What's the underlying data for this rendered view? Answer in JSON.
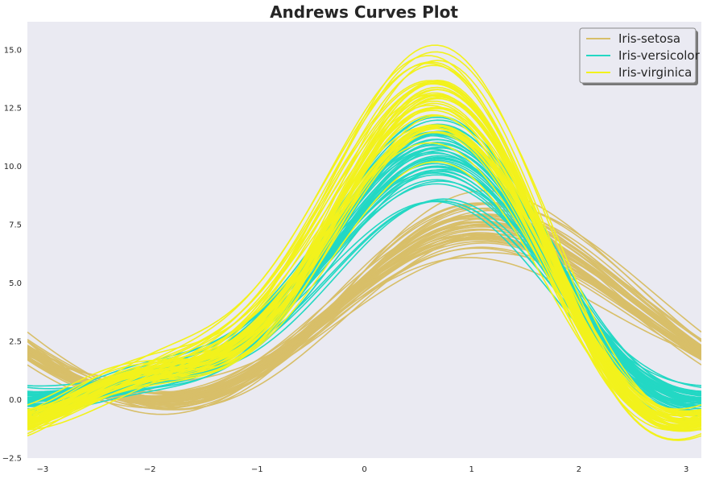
{
  "chart_data": {
    "type": "line",
    "title": "Andrews Curves Plot",
    "xlabel": "",
    "ylabel": "",
    "xlim": [
      -3.14159,
      3.14159
    ],
    "ylim": [
      -2.5,
      16.2
    ],
    "x_ticks": [
      -3,
      -2,
      -1,
      0,
      1,
      2,
      3
    ],
    "x_tick_labels": [
      "−3",
      "−2",
      "−1",
      "0",
      "1",
      "2",
      "3"
    ],
    "y_ticks": [
      -2.5,
      0.0,
      2.5,
      5.0,
      7.5,
      10.0,
      12.5,
      15.0
    ],
    "y_tick_labels": [
      "−2.5",
      "0.0",
      "2.5",
      "5.0",
      "7.5",
      "10.0",
      "12.5",
      "15.0"
    ],
    "grid": false,
    "background": "#eaeaf2",
    "legend": {
      "placement": "top-right"
    },
    "series": [
      {
        "name": "Iris-setosa",
        "color": "#d8bf69",
        "curves": [
          [
            5.1,
            3.5,
            1.4,
            0.2
          ],
          [
            4.9,
            3.0,
            1.4,
            0.2
          ],
          [
            4.7,
            3.2,
            1.3,
            0.2
          ],
          [
            4.6,
            3.1,
            1.5,
            0.2
          ],
          [
            5.0,
            3.6,
            1.4,
            0.2
          ],
          [
            5.4,
            3.9,
            1.7,
            0.4
          ],
          [
            4.6,
            3.4,
            1.4,
            0.3
          ],
          [
            5.0,
            3.4,
            1.5,
            0.2
          ],
          [
            4.4,
            2.9,
            1.4,
            0.2
          ],
          [
            4.9,
            3.1,
            1.5,
            0.1
          ],
          [
            5.4,
            3.7,
            1.5,
            0.2
          ],
          [
            4.8,
            3.4,
            1.6,
            0.2
          ],
          [
            4.8,
            3.0,
            1.4,
            0.1
          ],
          [
            4.3,
            3.0,
            1.1,
            0.1
          ],
          [
            5.8,
            4.0,
            1.2,
            0.2
          ],
          [
            5.7,
            4.4,
            1.5,
            0.4
          ],
          [
            5.4,
            3.9,
            1.3,
            0.4
          ],
          [
            5.1,
            3.5,
            1.4,
            0.3
          ],
          [
            5.7,
            3.8,
            1.7,
            0.3
          ],
          [
            5.1,
            3.8,
            1.5,
            0.3
          ],
          [
            5.4,
            3.4,
            1.7,
            0.2
          ],
          [
            5.1,
            3.7,
            1.5,
            0.4
          ],
          [
            4.6,
            3.6,
            1.0,
            0.2
          ],
          [
            5.1,
            3.3,
            1.7,
            0.5
          ],
          [
            4.8,
            3.4,
            1.9,
            0.2
          ],
          [
            5.0,
            3.0,
            1.6,
            0.2
          ],
          [
            5.0,
            3.4,
            1.6,
            0.4
          ],
          [
            5.2,
            3.5,
            1.5,
            0.2
          ],
          [
            5.2,
            3.4,
            1.4,
            0.2
          ],
          [
            4.7,
            3.2,
            1.6,
            0.2
          ],
          [
            4.8,
            3.1,
            1.6,
            0.2
          ],
          [
            5.4,
            3.4,
            1.5,
            0.4
          ],
          [
            5.2,
            4.1,
            1.5,
            0.1
          ],
          [
            5.5,
            4.2,
            1.4,
            0.2
          ],
          [
            4.9,
            3.1,
            1.5,
            0.1
          ],
          [
            5.0,
            3.2,
            1.2,
            0.2
          ],
          [
            5.5,
            3.5,
            1.3,
            0.2
          ],
          [
            4.9,
            3.1,
            1.5,
            0.1
          ],
          [
            4.4,
            3.0,
            1.3,
            0.2
          ],
          [
            5.1,
            3.4,
            1.5,
            0.2
          ],
          [
            5.0,
            3.5,
            1.3,
            0.3
          ],
          [
            4.5,
            2.3,
            1.3,
            0.3
          ],
          [
            4.4,
            3.2,
            1.3,
            0.2
          ],
          [
            5.0,
            3.5,
            1.6,
            0.6
          ],
          [
            5.1,
            3.8,
            1.9,
            0.4
          ],
          [
            4.8,
            3.0,
            1.4,
            0.3
          ],
          [
            5.1,
            3.8,
            1.6,
            0.2
          ],
          [
            4.6,
            3.2,
            1.4,
            0.2
          ],
          [
            5.3,
            3.7,
            1.5,
            0.2
          ],
          [
            5.0,
            3.3,
            1.4,
            0.2
          ]
        ]
      },
      {
        "name": "Iris-versicolor",
        "color": "#23d8c4",
        "curves": [
          [
            7.0,
            3.2,
            4.7,
            1.4
          ],
          [
            6.4,
            3.2,
            4.5,
            1.5
          ],
          [
            6.9,
            3.1,
            4.9,
            1.5
          ],
          [
            5.5,
            2.3,
            4.0,
            1.3
          ],
          [
            6.5,
            2.8,
            4.6,
            1.5
          ],
          [
            5.7,
            2.8,
            4.5,
            1.3
          ],
          [
            6.3,
            3.3,
            4.7,
            1.6
          ],
          [
            4.9,
            2.4,
            3.3,
            1.0
          ],
          [
            6.6,
            2.9,
            4.6,
            1.3
          ],
          [
            5.2,
            2.7,
            3.9,
            1.4
          ],
          [
            5.0,
            2.0,
            3.5,
            1.0
          ],
          [
            5.9,
            3.0,
            4.2,
            1.5
          ],
          [
            6.0,
            2.2,
            4.0,
            1.0
          ],
          [
            6.1,
            2.9,
            4.7,
            1.4
          ],
          [
            5.6,
            2.9,
            3.6,
            1.3
          ],
          [
            6.7,
            3.1,
            4.4,
            1.4
          ],
          [
            5.6,
            3.0,
            4.5,
            1.5
          ],
          [
            5.8,
            2.7,
            4.1,
            1.0
          ],
          [
            6.2,
            2.2,
            4.5,
            1.5
          ],
          [
            5.6,
            2.5,
            3.9,
            1.1
          ],
          [
            5.9,
            3.2,
            4.8,
            1.8
          ],
          [
            6.1,
            2.8,
            4.0,
            1.3
          ],
          [
            6.3,
            2.5,
            4.9,
            1.5
          ],
          [
            6.1,
            2.8,
            4.7,
            1.2
          ],
          [
            6.4,
            2.9,
            4.3,
            1.3
          ],
          [
            6.6,
            3.0,
            4.4,
            1.4
          ],
          [
            6.8,
            2.8,
            4.8,
            1.4
          ],
          [
            6.7,
            3.0,
            5.0,
            1.7
          ],
          [
            6.0,
            2.9,
            4.5,
            1.5
          ],
          [
            5.7,
            2.6,
            3.5,
            1.0
          ],
          [
            5.5,
            2.4,
            3.8,
            1.1
          ],
          [
            5.5,
            2.4,
            3.7,
            1.0
          ],
          [
            5.8,
            2.7,
            3.9,
            1.2
          ],
          [
            6.0,
            2.7,
            5.1,
            1.6
          ],
          [
            5.4,
            3.0,
            4.5,
            1.5
          ],
          [
            6.0,
            3.4,
            4.5,
            1.6
          ],
          [
            6.7,
            3.1,
            4.7,
            1.5
          ],
          [
            6.3,
            2.3,
            4.4,
            1.3
          ],
          [
            5.6,
            3.0,
            4.1,
            1.3
          ],
          [
            5.5,
            2.5,
            4.0,
            1.3
          ],
          [
            5.5,
            2.6,
            4.4,
            1.2
          ],
          [
            6.1,
            3.0,
            4.6,
            1.4
          ],
          [
            5.8,
            2.6,
            4.0,
            1.2
          ],
          [
            5.0,
            2.3,
            3.3,
            1.0
          ],
          [
            5.6,
            2.7,
            4.2,
            1.3
          ],
          [
            5.7,
            3.0,
            4.2,
            1.2
          ],
          [
            5.7,
            2.9,
            4.2,
            1.3
          ],
          [
            6.2,
            2.9,
            4.3,
            1.3
          ],
          [
            5.1,
            2.5,
            3.0,
            1.1
          ],
          [
            5.7,
            2.8,
            4.1,
            1.3
          ]
        ]
      },
      {
        "name": "Iris-virginica",
        "color": "#f2f21c",
        "curves": [
          [
            6.3,
            3.3,
            6.0,
            2.5
          ],
          [
            5.8,
            2.7,
            5.1,
            1.9
          ],
          [
            7.1,
            3.0,
            5.9,
            2.1
          ],
          [
            6.3,
            2.9,
            5.6,
            1.8
          ],
          [
            6.5,
            3.0,
            5.8,
            2.2
          ],
          [
            7.6,
            3.0,
            6.6,
            2.1
          ],
          [
            4.9,
            2.5,
            4.5,
            1.7
          ],
          [
            7.3,
            2.9,
            6.3,
            1.8
          ],
          [
            6.7,
            2.5,
            5.8,
            1.8
          ],
          [
            7.2,
            3.6,
            6.1,
            2.5
          ],
          [
            6.5,
            3.2,
            5.1,
            2.0
          ],
          [
            6.4,
            2.7,
            5.3,
            1.9
          ],
          [
            6.8,
            3.0,
            5.5,
            2.1
          ],
          [
            5.7,
            2.5,
            5.0,
            2.0
          ],
          [
            5.8,
            2.8,
            5.1,
            2.4
          ],
          [
            6.4,
            3.2,
            5.3,
            2.3
          ],
          [
            6.5,
            3.0,
            5.5,
            1.8
          ],
          [
            7.7,
            3.8,
            6.7,
            2.2
          ],
          [
            7.7,
            2.6,
            6.9,
            2.3
          ],
          [
            6.0,
            2.2,
            5.0,
            1.5
          ],
          [
            6.9,
            3.2,
            5.7,
            2.3
          ],
          [
            5.6,
            2.8,
            4.9,
            2.0
          ],
          [
            7.7,
            2.8,
            6.7,
            2.0
          ],
          [
            6.3,
            2.7,
            4.9,
            1.8
          ],
          [
            6.7,
            3.3,
            5.7,
            2.1
          ],
          [
            7.2,
            3.2,
            6.0,
            1.8
          ],
          [
            6.2,
            2.8,
            4.8,
            1.8
          ],
          [
            6.1,
            3.0,
            4.9,
            1.8
          ],
          [
            6.4,
            2.8,
            5.6,
            2.1
          ],
          [
            7.2,
            3.0,
            5.8,
            1.6
          ],
          [
            7.4,
            2.8,
            6.1,
            1.9
          ],
          [
            7.9,
            3.8,
            6.4,
            2.0
          ],
          [
            6.4,
            2.8,
            5.6,
            2.2
          ],
          [
            6.3,
            2.8,
            5.1,
            1.5
          ],
          [
            6.1,
            2.6,
            5.6,
            1.4
          ],
          [
            7.7,
            3.0,
            6.1,
            2.3
          ],
          [
            6.3,
            3.4,
            5.6,
            2.4
          ],
          [
            6.4,
            3.1,
            5.5,
            1.8
          ],
          [
            6.0,
            3.0,
            4.8,
            1.8
          ],
          [
            6.9,
            3.1,
            5.4,
            2.1
          ],
          [
            6.7,
            3.1,
            5.6,
            2.4
          ],
          [
            6.9,
            3.1,
            5.1,
            2.3
          ],
          [
            5.8,
            2.7,
            5.1,
            1.9
          ],
          [
            6.8,
            3.2,
            5.9,
            2.3
          ],
          [
            6.7,
            3.3,
            5.7,
            2.5
          ],
          [
            6.7,
            3.0,
            5.2,
            2.3
          ],
          [
            6.3,
            2.5,
            5.0,
            1.9
          ],
          [
            6.5,
            3.0,
            5.2,
            2.0
          ],
          [
            6.2,
            3.4,
            5.4,
            2.3
          ],
          [
            5.9,
            3.0,
            5.1,
            1.8
          ]
        ]
      }
    ]
  }
}
